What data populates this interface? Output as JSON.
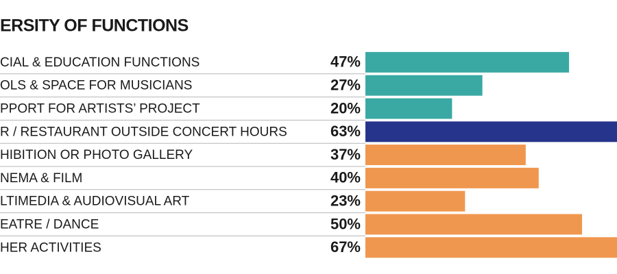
{
  "chart_data": {
    "type": "bar",
    "orientation": "horizontal",
    "title": "ERSITY OF FUNCTIONS",
    "categories": [
      "CIAL & EDUCATION FUNCTIONS",
      "OLS & SPACE FOR MUSICIANS",
      "PPORT FOR ARTISTS’ PROJECT",
      "R / RESTAURANT OUTSIDE CONCERT HOURS",
      "HIBITION OR PHOTO GALLERY",
      "NEMA & FILM",
      "LTIMEDIA & AUDIOVISUAL ART",
      "EATRE / DANCE",
      "HER ACTIVITIES"
    ],
    "values": [
      47,
      27,
      20,
      63,
      37,
      40,
      23,
      50,
      67
    ],
    "value_labels": [
      "47%",
      "27%",
      "20%",
      "63%",
      "37%",
      "40%",
      "23%",
      "50%",
      "67%"
    ],
    "colors": [
      "#3aa9a3",
      "#3aa9a3",
      "#3aa9a3",
      "#27348b",
      "#f0974f",
      "#f0974f",
      "#f0974f",
      "#f0974f",
      "#f0974f"
    ]
  }
}
